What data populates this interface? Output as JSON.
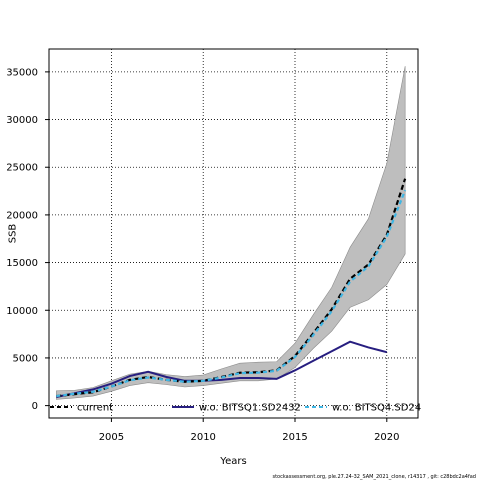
{
  "chart_data": {
    "type": "line",
    "xlabel": "Years",
    "ylabel": "SSB",
    "xlim": [
      2001.6,
      2021.7
    ],
    "ylim": [
      -1300,
      37400
    ],
    "xticks": [
      "2005",
      "2010",
      "2015",
      "2020"
    ],
    "yticks": [
      "0",
      "5000",
      "10000",
      "15000",
      "20000",
      "25000",
      "30000",
      "35000"
    ],
    "grid": true,
    "legend_position": "bottom",
    "x": [
      2002,
      2003,
      2004,
      2005,
      2006,
      2007,
      2008,
      2009,
      2010,
      2011,
      2012,
      2013,
      2014,
      2015,
      2016,
      2017,
      2018,
      2019,
      2020,
      2021
    ],
    "band": {
      "lower": [
        650,
        800,
        1000,
        1500,
        2100,
        2400,
        2200,
        1950,
        2100,
        2350,
        2600,
        2600,
        2800,
        4000,
        6000,
        7800,
        10300,
        11100,
        12700,
        15900
      ],
      "upper": [
        1550,
        1600,
        1900,
        2600,
        3300,
        3600,
        3250,
        3050,
        3200,
        3850,
        4450,
        4550,
        4600,
        6550,
        9550,
        12400,
        16600,
        19600,
        25400,
        35600
      ]
    },
    "series": [
      {
        "name": "current",
        "color": "#000000",
        "style": "dashed",
        "values": [
          1000,
          1200,
          1400,
          2000,
          2700,
          3000,
          2700,
          2500,
          2600,
          3000,
          3450,
          3500,
          3700,
          5200,
          7600,
          10100,
          13300,
          14800,
          17900,
          23800
        ]
      },
      {
        "name": "w.o. BITSQ1.SD2432",
        "color": "#271e80",
        "style": "solid",
        "values": [
          900,
          1300,
          1700,
          2300,
          3100,
          3550,
          3000,
          2600,
          2600,
          2700,
          2900,
          2900,
          2800,
          3700,
          4700,
          5700,
          6700,
          6100,
          5600,
          null
        ]
      },
      {
        "name": "w.o. BITSQ4.SD24",
        "color": "#3fb6e4",
        "style": "dashed",
        "values": [
          1000,
          1250,
          1450,
          2000,
          2650,
          2950,
          2700,
          2500,
          2600,
          2950,
          3400,
          3450,
          3650,
          5100,
          7400,
          9900,
          13000,
          14600,
          17700,
          22600
        ]
      }
    ]
  },
  "footer": {
    "caption": "stockassessment.org,  ple.27.24-32_SAM_2021_clone,  r14317 ,  git: c28bdc2a4fad"
  }
}
